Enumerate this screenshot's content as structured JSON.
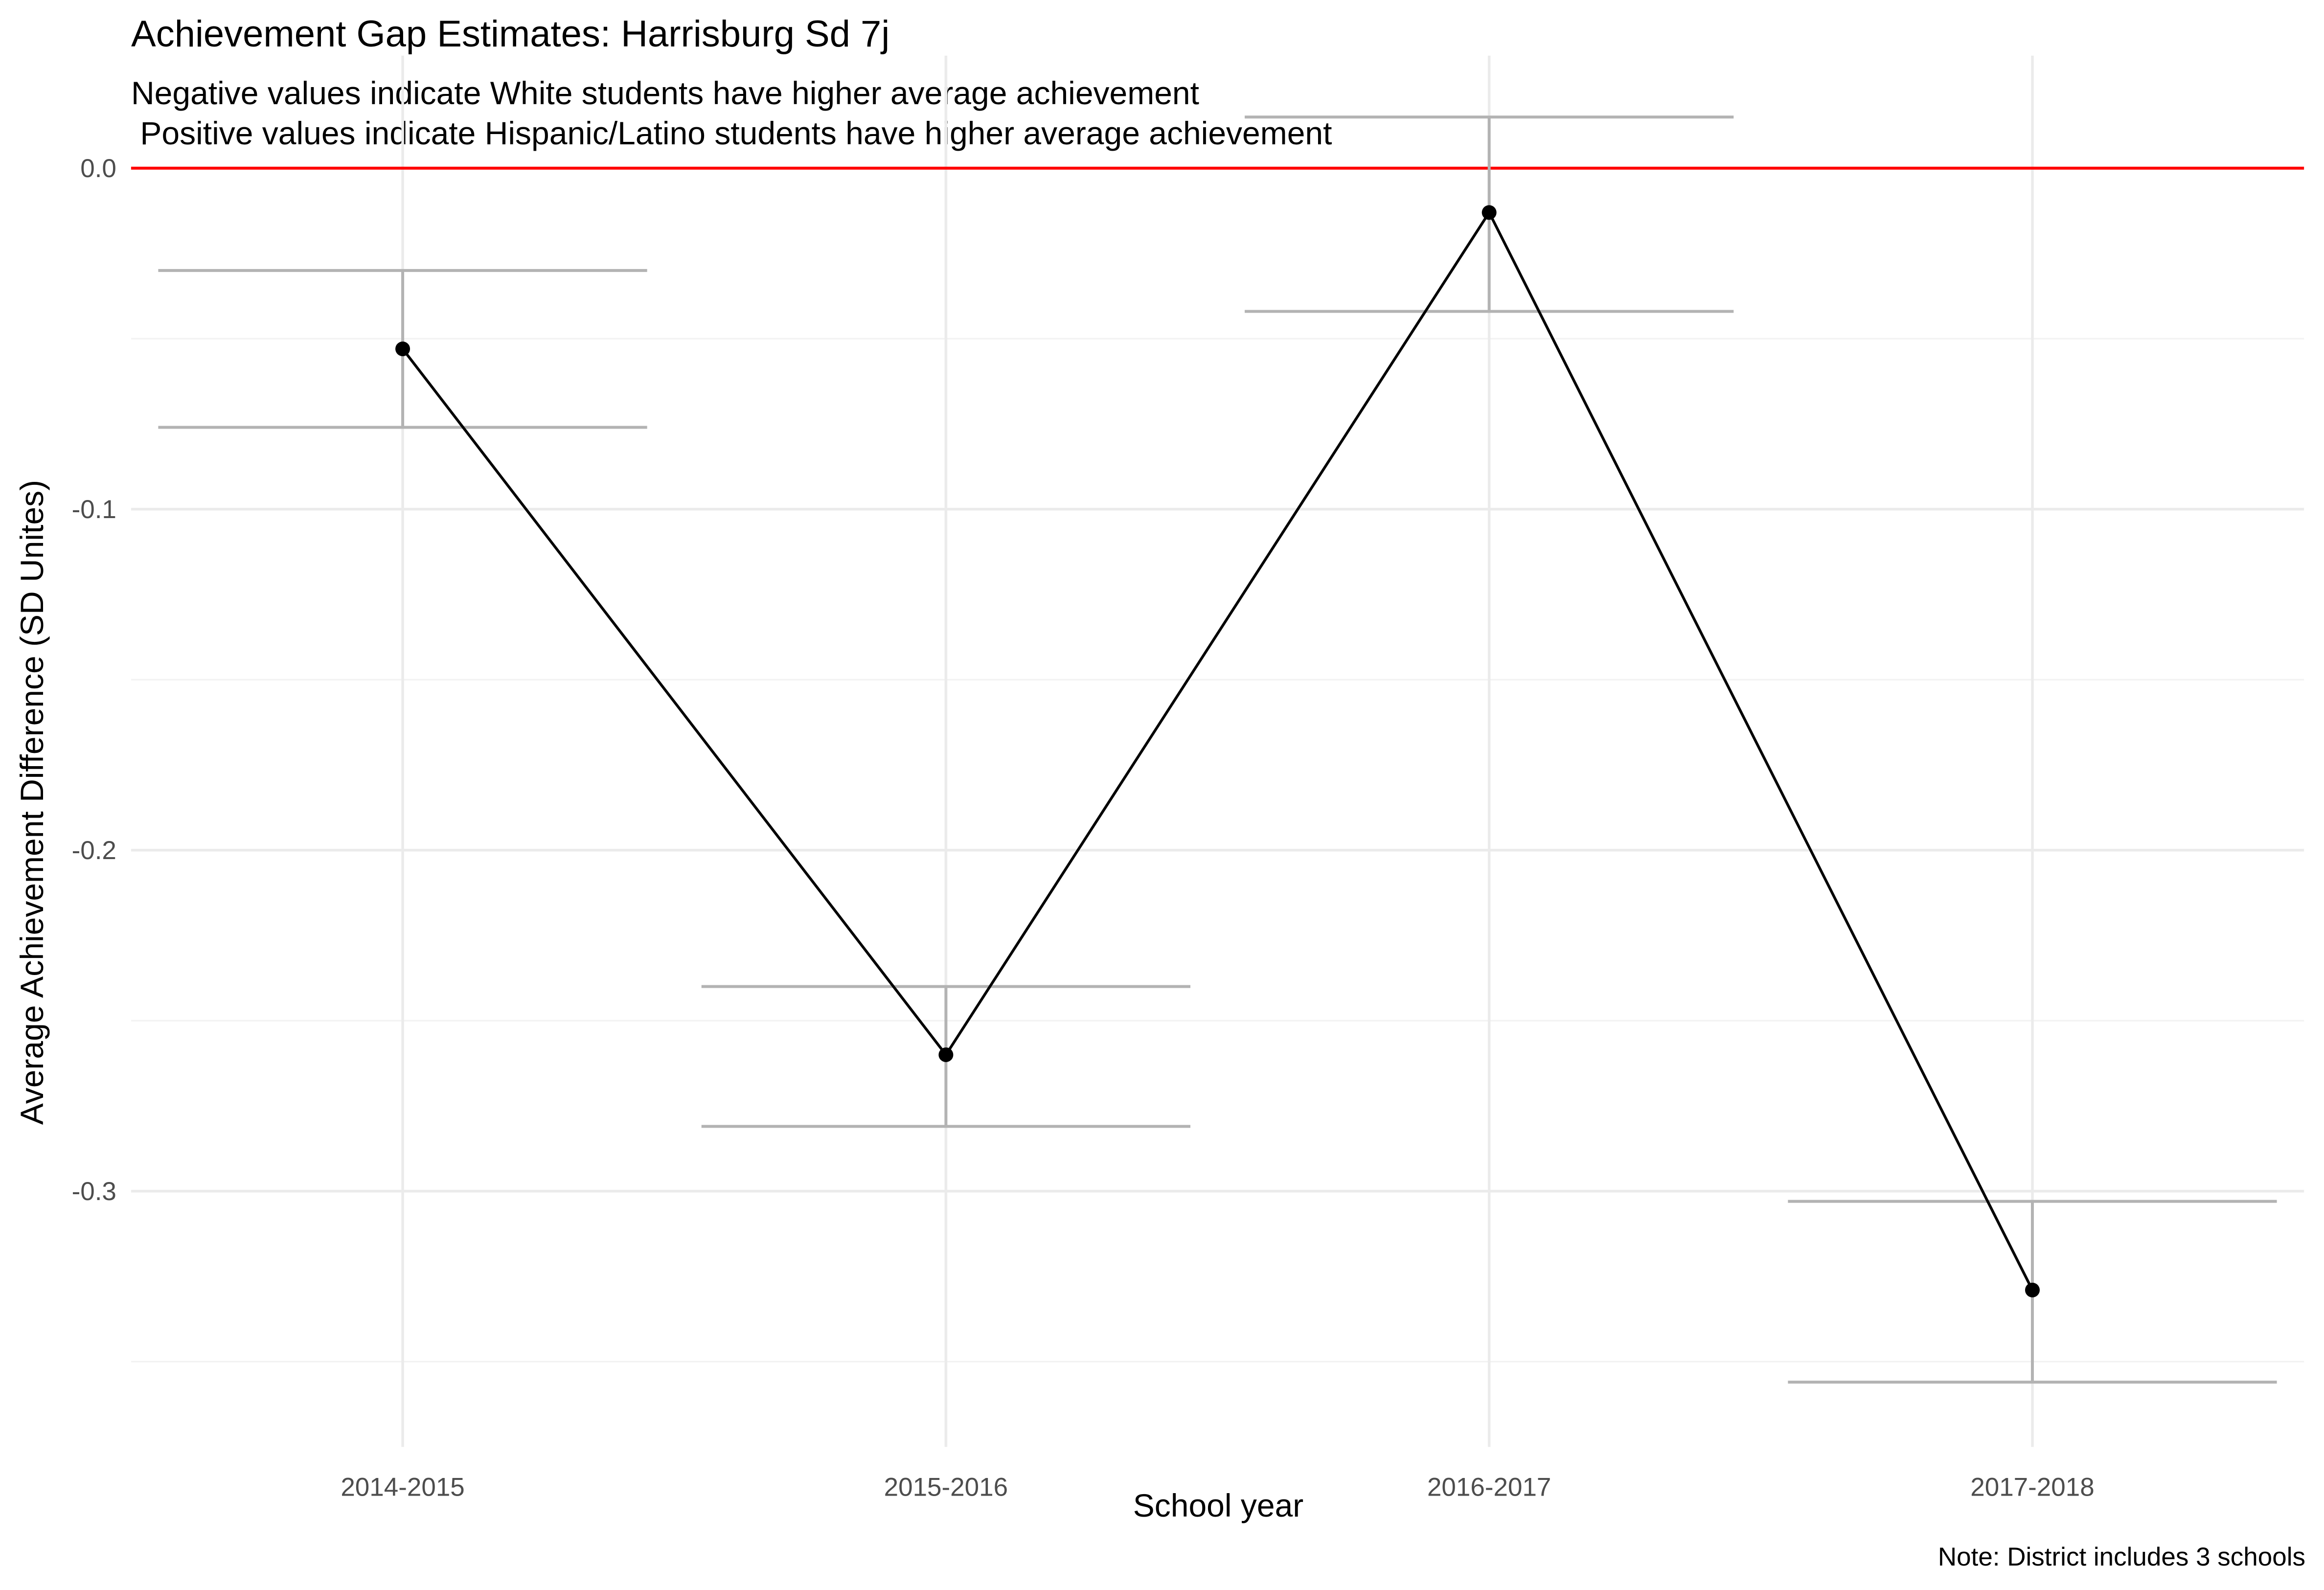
{
  "chart_data": {
    "type": "line",
    "title": "Achievement Gap Estimates: Harrisburg Sd 7j",
    "subtitle_lines": [
      "Negative values indicate White students have higher average achievement",
      " Positive values indicate Hispanic/Latino students have higher average achievement"
    ],
    "xlabel": "School year",
    "ylabel": "Average Achievement Difference (SD Unites)",
    "caption": "Note: District includes 3 schools",
    "categories": [
      "2014-2015",
      "2015-2016",
      "2016-2017",
      "2017-2018"
    ],
    "values": [
      -0.053,
      -0.26,
      -0.013,
      -0.329
    ],
    "error_lower": [
      -0.076,
      -0.281,
      -0.042,
      -0.356
    ],
    "error_upper": [
      -0.03,
      -0.24,
      0.015,
      -0.303
    ],
    "ylim": [
      -0.375,
      0.033
    ],
    "yticks": [
      0.0,
      -0.1,
      -0.2,
      -0.3
    ],
    "ytick_labels": [
      "0.0",
      "-0.1",
      "-0.2",
      "-0.3"
    ],
    "reference_line": {
      "y": 0.0,
      "color": "#ff0000"
    },
    "line_color": "#000000",
    "error_bar_color": "#b3b3b3",
    "grid": true,
    "legend": "none"
  }
}
